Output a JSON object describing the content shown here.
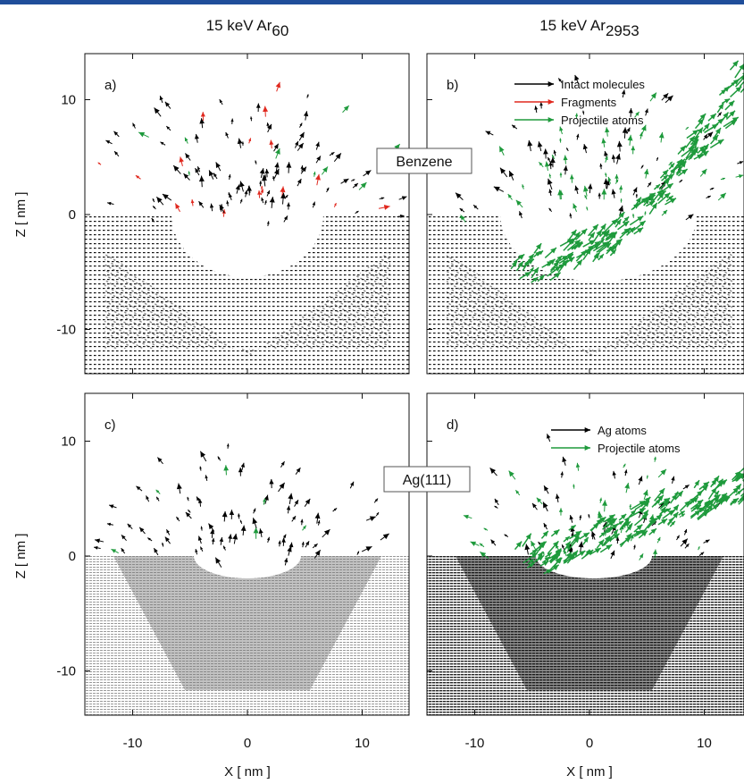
{
  "figure": {
    "columns": [
      {
        "title": "15 keV Ar",
        "subscript": "60"
      },
      {
        "title": "15 keV Ar",
        "subscript": "2953"
      }
    ],
    "panels": [
      {
        "label": "a)"
      },
      {
        "label": "b)"
      },
      {
        "label": "c)"
      },
      {
        "label": "d)"
      }
    ],
    "x_axis": {
      "label": "X [ nm ]",
      "ticks": [
        -10,
        0,
        10
      ]
    },
    "z_axis": {
      "label": "Z [ nm ]",
      "ticks": [
        10,
        0,
        -10
      ]
    },
    "annotations": [
      "Benzene",
      "Ag(111)"
    ],
    "legends": [
      {
        "entries": [
          {
            "name": "Intact molecules",
            "color": "#000000"
          },
          {
            "name": "Fragments",
            "color": "#e0281e"
          },
          {
            "name": "Projectile atoms",
            "color": "#1e9a3c"
          }
        ]
      },
      {
        "entries": [
          {
            "name": "Ag atoms",
            "color": "#000000"
          },
          {
            "name": "Projectile atoms",
            "color": "#1e9a3c"
          }
        ]
      }
    ]
  }
}
